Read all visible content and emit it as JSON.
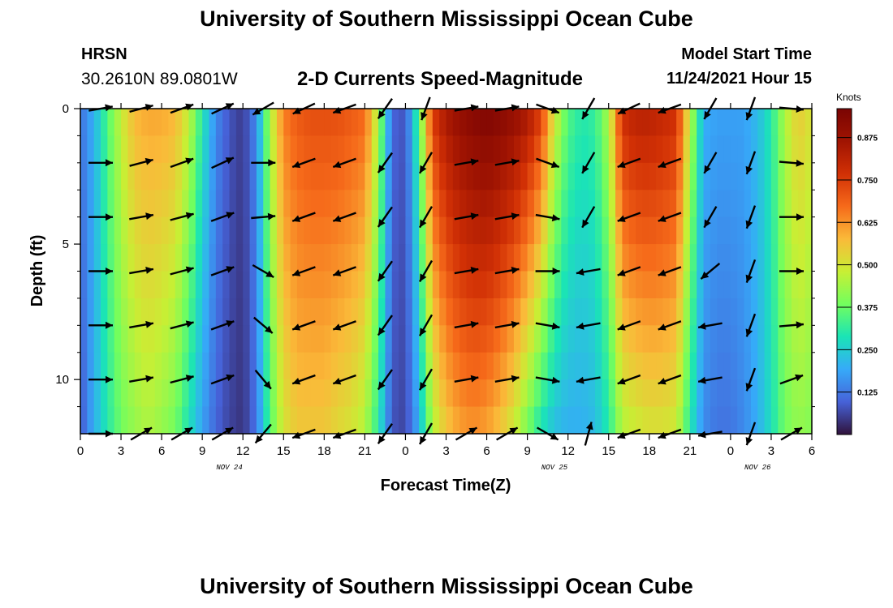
{
  "header": {
    "title": "University of Southern Mississippi Ocean Cube",
    "station": "HRSN",
    "coords": "30.2610N  89.0801W",
    "subtitle": "2-D Currents Speed-Magnitude",
    "model_start_label": "Model Start Time",
    "model_start_value": "11/24/2021 Hour 15",
    "footer_title": "University of Southern Mississippi Ocean Cube"
  },
  "chart_data": {
    "type": "heatmap",
    "title": "2-D Currents Speed-Magnitude",
    "xlabel": "Forecast Time(Z)",
    "ylabel": "Depth (ft)",
    "x_ticks": [
      "0",
      "3",
      "6",
      "9",
      "12",
      "15",
      "18",
      "21",
      "0",
      "3",
      "6",
      "9",
      "12",
      "15",
      "18",
      "21",
      "0",
      "3",
      "6"
    ],
    "y_ticks": [
      "0",
      "5",
      "10"
    ],
    "y_range": [
      0,
      12
    ],
    "x_range_hours": [
      0,
      54
    ],
    "date_labels": [
      {
        "label": "NOV 24",
        "hour": 11
      },
      {
        "label": "NOV 25",
        "hour": 35
      },
      {
        "label": "NOV 26",
        "hour": 50
      }
    ],
    "colorbar": {
      "label": "Knots",
      "ticks": [
        "0.875",
        "0.750",
        "0.625",
        "0.500",
        "0.375",
        "0.250",
        "0.125"
      ],
      "range": [
        0.0,
        0.96
      ]
    },
    "speed_profile_hours": [
      0,
      1,
      2,
      3,
      4,
      5,
      6,
      7,
      8,
      9,
      10,
      11,
      12,
      13,
      14,
      15,
      16,
      17,
      18,
      19,
      20,
      21,
      22,
      23,
      24,
      25,
      26,
      27,
      28,
      29,
      30,
      31,
      32,
      33,
      34,
      35,
      36,
      37,
      38,
      39,
      40,
      41,
      42,
      43,
      44,
      45,
      46,
      47,
      48,
      49,
      50,
      51,
      52,
      53,
      54
    ],
    "speed_profile_surface": [
      0.12,
      0.2,
      0.35,
      0.48,
      0.58,
      0.6,
      0.6,
      0.58,
      0.48,
      0.3,
      0.15,
      0.08,
      0.05,
      0.15,
      0.45,
      0.65,
      0.7,
      0.72,
      0.72,
      0.72,
      0.7,
      0.68,
      0.45,
      0.1,
      0.08,
      0.35,
      0.75,
      0.85,
      0.9,
      0.93,
      0.95,
      0.93,
      0.9,
      0.85,
      0.75,
      0.5,
      0.35,
      0.3,
      0.32,
      0.45,
      0.78,
      0.82,
      0.82,
      0.8,
      0.78,
      0.48,
      0.2,
      0.18,
      0.18,
      0.18,
      0.22,
      0.3,
      0.45,
      0.55,
      0.5
    ],
    "speed_profile_bottom": [
      0.08,
      0.2,
      0.3,
      0.38,
      0.42,
      0.45,
      0.42,
      0.38,
      0.28,
      0.18,
      0.1,
      0.06,
      0.04,
      0.12,
      0.35,
      0.5,
      0.55,
      0.55,
      0.55,
      0.52,
      0.5,
      0.45,
      0.3,
      0.08,
      0.06,
      0.2,
      0.45,
      0.55,
      0.6,
      0.62,
      0.6,
      0.55,
      0.48,
      0.38,
      0.28,
      0.22,
      0.2,
      0.2,
      0.22,
      0.3,
      0.45,
      0.48,
      0.5,
      0.5,
      0.48,
      0.3,
      0.15,
      0.12,
      0.12,
      0.15,
      0.2,
      0.28,
      0.38,
      0.42,
      0.4
    ],
    "vector_depths_ft": [
      0,
      2,
      4,
      6,
      8,
      10,
      12
    ],
    "vector_hours": [
      1.5,
      4.5,
      7.5,
      10.5,
      13.5,
      16.5,
      19.5,
      22.5,
      25.5,
      28.5,
      31.5,
      34.5,
      37.5,
      40.5,
      43.5,
      46.5,
      49.5,
      52.5
    ],
    "vector_direction_deg": [
      [
        80,
        75,
        70,
        65,
        240,
        245,
        250,
        215,
        200,
        80,
        80,
        110,
        210,
        245,
        250,
        210,
        200,
        95
      ],
      [
        90,
        75,
        70,
        65,
        90,
        250,
        250,
        215,
        210,
        80,
        80,
        110,
        210,
        250,
        250,
        210,
        200,
        95
      ],
      [
        90,
        80,
        75,
        70,
        85,
        250,
        250,
        215,
        210,
        80,
        80,
        100,
        210,
        250,
        250,
        210,
        200,
        90
      ],
      [
        90,
        80,
        75,
        70,
        120,
        250,
        250,
        215,
        210,
        80,
        80,
        90,
        260,
        250,
        250,
        230,
        200,
        90
      ],
      [
        90,
        80,
        75,
        70,
        130,
        250,
        250,
        215,
        210,
        80,
        80,
        100,
        260,
        250,
        250,
        260,
        200,
        85
      ],
      [
        90,
        80,
        75,
        70,
        140,
        250,
        250,
        215,
        210,
        80,
        80,
        100,
        260,
        250,
        250,
        260,
        200,
        70
      ],
      [
        90,
        60,
        60,
        60,
        220,
        250,
        250,
        215,
        210,
        60,
        60,
        120,
        15,
        250,
        250,
        260,
        200,
        60
      ]
    ]
  }
}
